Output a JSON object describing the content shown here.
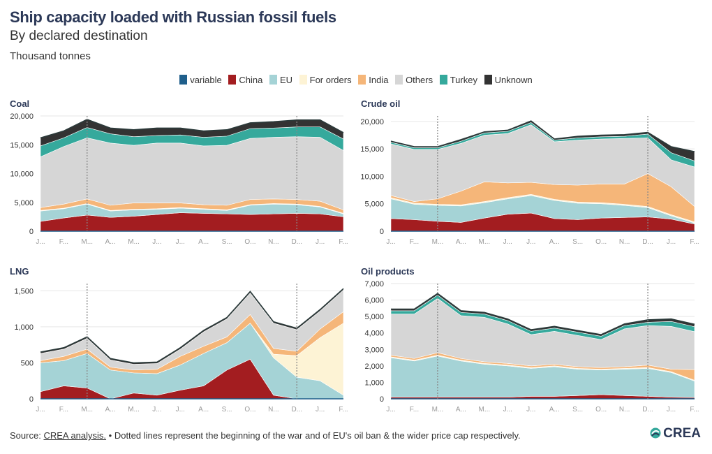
{
  "header": {
    "title": "Ship capacity loaded with Russian fossil fuels",
    "subtitle": "By declared destination",
    "units": "Thousand tonnes"
  },
  "legend": [
    {
      "label": "variable",
      "color": "#1f5f8b"
    },
    {
      "label": "China",
      "color": "#a31d20"
    },
    {
      "label": "EU",
      "color": "#a5d3d6"
    },
    {
      "label": "For orders",
      "color": "#fdf3d5"
    },
    {
      "label": "India",
      "color": "#f5b679"
    },
    {
      "label": "Others",
      "color": "#d6d6d6"
    },
    {
      "label": "Turkey",
      "color": "#35a99c"
    },
    {
      "label": "Unknown",
      "color": "#333333"
    }
  ],
  "footer": {
    "source_label": "Source:",
    "source_link": "CREA analysis.",
    "note": "• Dotted lines represent the beginning of the war and of EU's oil ban & the wider price cap respectively.",
    "logo_text": "CREA"
  },
  "chart_data": [
    {
      "type": "area",
      "title": "Coal",
      "stacked": true,
      "ylim": [
        0,
        20000
      ],
      "yticks": [
        "0",
        "5,000",
        "10,000",
        "15,000",
        "20,000"
      ],
      "x_ticks": [
        "J...",
        "F...",
        "M...",
        "A...",
        "M...",
        "J...",
        "J...",
        "A...",
        "S...",
        "O...",
        "N...",
        "D...",
        "J...",
        "F..."
      ],
      "markers": [
        2,
        11
      ],
      "x": [
        0,
        1,
        2,
        3,
        4,
        5,
        6,
        7,
        8,
        9,
        10,
        11,
        12,
        13
      ],
      "series": [
        {
          "name": "China",
          "values": [
            1700,
            2300,
            2800,
            2400,
            2600,
            2900,
            3200,
            3100,
            3000,
            2900,
            3000,
            3100,
            3000,
            2500
          ]
        },
        {
          "name": "EU",
          "values": [
            1800,
            1600,
            1900,
            1100,
            1100,
            900,
            800,
            700,
            600,
            1600,
            1700,
            1500,
            1200,
            500
          ]
        },
        {
          "name": "For orders",
          "values": [
            100,
            100,
            100,
            100,
            100,
            100,
            100,
            100,
            100,
            100,
            100,
            100,
            100,
            100
          ]
        },
        {
          "name": "India",
          "values": [
            500,
            700,
            800,
            900,
            1100,
            1000,
            800,
            700,
            800,
            900,
            800,
            800,
            900,
            600
          ]
        },
        {
          "name": "Others",
          "values": [
            8800,
            10000,
            10600,
            10800,
            10000,
            10400,
            10400,
            10200,
            10400,
            10600,
            10700,
            10900,
            11100,
            10300
          ]
        },
        {
          "name": "Turkey",
          "values": [
            1900,
            1500,
            1800,
            1600,
            1500,
            1300,
            1400,
            1500,
            1600,
            1700,
            1600,
            1700,
            1800,
            2000
          ]
        },
        {
          "name": "Unknown",
          "values": [
            1400,
            1200,
            1400,
            1000,
            1200,
            1300,
            1200,
            1100,
            1100,
            1000,
            1100,
            1200,
            1200,
            1100
          ]
        }
      ]
    },
    {
      "type": "area",
      "title": "Crude oil",
      "stacked": true,
      "ylim": [
        0,
        21000
      ],
      "yticks": [
        "0",
        "5,000",
        "10,000",
        "15,000",
        "20,000"
      ],
      "x_ticks": [
        "J...",
        "F...",
        "M...",
        "A...",
        "M...",
        "J...",
        "J...",
        "A...",
        "S...",
        "O...",
        "N...",
        "D...",
        "J...",
        "F..."
      ],
      "markers": [
        2,
        11
      ],
      "x": [
        0,
        1,
        2,
        3,
        4,
        5,
        6,
        7,
        8,
        9,
        10,
        11,
        12,
        13
      ],
      "series": [
        {
          "name": "China",
          "values": [
            2300,
            2100,
            1800,
            1600,
            2400,
            3100,
            3300,
            2300,
            2100,
            2400,
            2500,
            2600,
            2200,
            1300
          ]
        },
        {
          "name": "EU",
          "values": [
            3600,
            2800,
            2900,
            3000,
            2800,
            2800,
            3200,
            3300,
            3000,
            2600,
            2200,
            1700,
            600,
            200
          ]
        },
        {
          "name": "For orders",
          "values": [
            200,
            200,
            200,
            200,
            200,
            200,
            200,
            200,
            200,
            200,
            200,
            200,
            200,
            200
          ]
        },
        {
          "name": "India",
          "values": [
            400,
            300,
            1000,
            2500,
            3600,
            2700,
            2200,
            2700,
            3100,
            3400,
            3700,
            6000,
            5100,
            2800
          ]
        },
        {
          "name": "Others",
          "values": [
            9400,
            9500,
            9000,
            8700,
            8500,
            9000,
            10500,
            7800,
            8200,
            8200,
            8300,
            6500,
            4900,
            7200
          ]
        },
        {
          "name": "Turkey",
          "values": [
            300,
            300,
            300,
            400,
            400,
            400,
            400,
            300,
            400,
            400,
            400,
            700,
            1300,
            1100
          ]
        },
        {
          "name": "Unknown",
          "values": [
            200,
            200,
            200,
            300,
            200,
            200,
            300,
            200,
            300,
            300,
            300,
            300,
            1100,
            1700
          ]
        }
      ]
    },
    {
      "type": "area",
      "title": "LNG",
      "stacked": true,
      "ylim": [
        0,
        1600
      ],
      "yticks": [
        "0",
        "500",
        "1,000",
        "1,500"
      ],
      "x_ticks": [
        "J...",
        "F...",
        "M...",
        "A...",
        "M...",
        "J...",
        "J...",
        "A...",
        "S...",
        "O...",
        "N...",
        "D...",
        "J...",
        "F..."
      ],
      "markers": [
        2,
        11
      ],
      "x": [
        0,
        1,
        2,
        3,
        4,
        5,
        6,
        7,
        8,
        9,
        10,
        11,
        12,
        13
      ],
      "series": [
        {
          "name": "China",
          "values": [
            100,
            180,
            150,
            0,
            80,
            50,
            120,
            180,
            400,
            550,
            50,
            0,
            0,
            0
          ]
        },
        {
          "name": "EU",
          "values": [
            400,
            350,
            480,
            400,
            280,
            300,
            350,
            450,
            380,
            500,
            520,
            300,
            250,
            50
          ]
        },
        {
          "name": "For orders",
          "values": [
            0,
            0,
            0,
            0,
            0,
            0,
            0,
            0,
            0,
            0,
            50,
            300,
            600,
            1000
          ]
        },
        {
          "name": "India",
          "values": [
            30,
            60,
            60,
            40,
            40,
            60,
            120,
            100,
            80,
            120,
            80,
            60,
            120,
            160
          ]
        },
        {
          "name": "Others",
          "values": [
            100,
            100,
            150,
            100,
            80,
            80,
            100,
            200,
            250,
            300,
            350,
            300,
            250,
            300
          ]
        },
        {
          "name": "Turkey",
          "values": [
            0,
            0,
            0,
            0,
            0,
            0,
            0,
            0,
            0,
            0,
            0,
            0,
            0,
            0
          ]
        },
        {
          "name": "Unknown",
          "values": [
            20,
            20,
            20,
            20,
            20,
            20,
            20,
            20,
            20,
            20,
            20,
            20,
            20,
            20
          ]
        }
      ]
    },
    {
      "type": "area",
      "title": "Oil products",
      "stacked": true,
      "ylim": [
        0,
        7000
      ],
      "yticks": [
        "0",
        "1,000",
        "2,000",
        "3,000",
        "4,000",
        "5,000",
        "6,000",
        "7,000"
      ],
      "x_ticks": [
        "J...",
        "F...",
        "M...",
        "A...",
        "M...",
        "J...",
        "J...",
        "A...",
        "S...",
        "O...",
        "N...",
        "D...",
        "J...",
        "F..."
      ],
      "markers": [
        2,
        11
      ],
      "x": [
        0,
        1,
        2,
        3,
        4,
        5,
        6,
        7,
        8,
        9,
        10,
        11,
        12,
        13
      ],
      "series": [
        {
          "name": "China",
          "values": [
            100,
            100,
            100,
            100,
            100,
            100,
            150,
            150,
            200,
            250,
            200,
            150,
            100,
            80
          ]
        },
        {
          "name": "EU",
          "values": [
            2400,
            2200,
            2500,
            2200,
            2000,
            1900,
            1700,
            1800,
            1600,
            1500,
            1600,
            1700,
            1500,
            1000
          ]
        },
        {
          "name": "For orders",
          "values": [
            50,
            50,
            50,
            50,
            50,
            50,
            50,
            50,
            50,
            50,
            50,
            50,
            50,
            50
          ]
        },
        {
          "name": "India",
          "values": [
            100,
            100,
            150,
            100,
            100,
            100,
            100,
            100,
            100,
            100,
            100,
            150,
            150,
            650
          ]
        },
        {
          "name": "Others",
          "values": [
            2500,
            2700,
            3300,
            2600,
            2700,
            2400,
            1900,
            2000,
            1900,
            1700,
            2300,
            2400,
            2600,
            2300
          ]
        },
        {
          "name": "Turkey",
          "values": [
            200,
            200,
            200,
            200,
            200,
            200,
            200,
            200,
            200,
            200,
            200,
            200,
            300,
            300
          ]
        },
        {
          "name": "Unknown",
          "values": [
            100,
            100,
            100,
            100,
            100,
            100,
            100,
            100,
            100,
            100,
            100,
            150,
            150,
            150
          ]
        }
      ]
    }
  ]
}
